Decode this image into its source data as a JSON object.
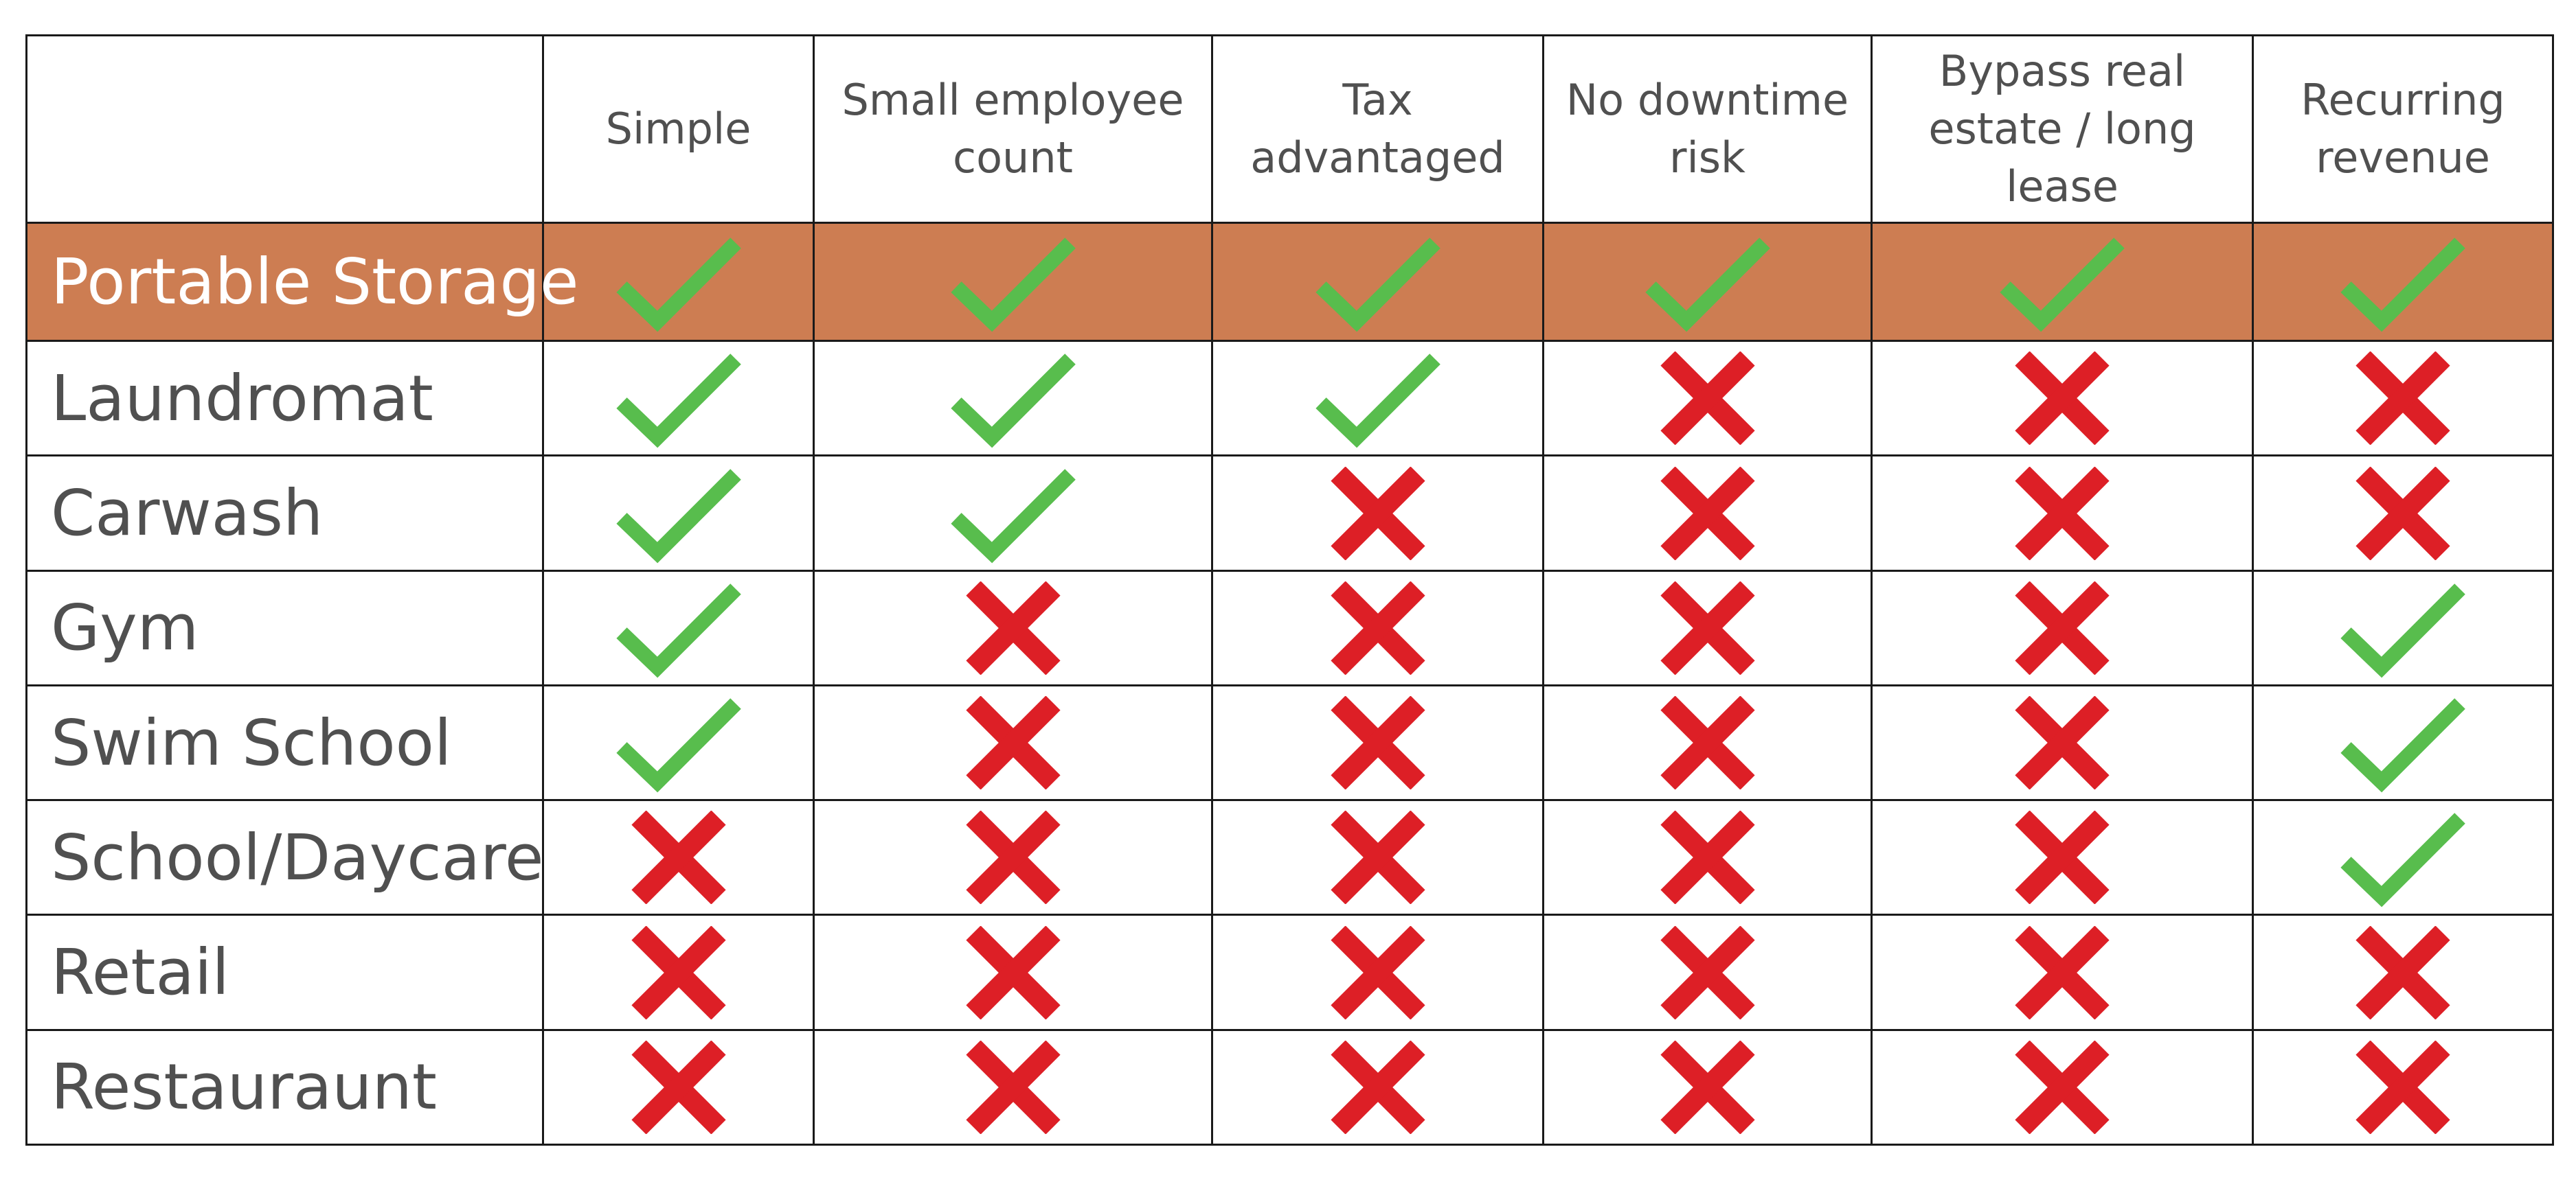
{
  "colors": {
    "highlight": "#cd7d52",
    "check": "#58bd4d",
    "cross": "#dd1f26",
    "text": "#505050",
    "highlight_text": "#ffffff",
    "border": "#1a1a1a"
  },
  "icons": {
    "yes": "check-icon",
    "no": "cross-icon"
  },
  "table": {
    "corner_label": "",
    "columns": [
      "Simple",
      "Small employee count",
      "Tax advantaged",
      "No downtime risk",
      "Bypass real estate / long lease",
      "Recurring revenue"
    ],
    "rows": [
      {
        "label": "Portable Storage",
        "highlighted": true,
        "values": [
          true,
          true,
          true,
          true,
          true,
          true
        ]
      },
      {
        "label": "Laundromat",
        "highlighted": false,
        "values": [
          true,
          true,
          true,
          false,
          false,
          false
        ]
      },
      {
        "label": "Carwash",
        "highlighted": false,
        "values": [
          true,
          true,
          false,
          false,
          false,
          false
        ]
      },
      {
        "label": "Gym",
        "highlighted": false,
        "values": [
          true,
          false,
          false,
          false,
          false,
          true
        ]
      },
      {
        "label": "Swim School",
        "highlighted": false,
        "values": [
          true,
          false,
          false,
          false,
          false,
          true
        ]
      },
      {
        "label": "School/Daycare",
        "highlighted": false,
        "values": [
          false,
          false,
          false,
          false,
          false,
          true
        ]
      },
      {
        "label": "Retail",
        "highlighted": false,
        "values": [
          false,
          false,
          false,
          false,
          false,
          false
        ]
      },
      {
        "label": "Restauraunt",
        "highlighted": false,
        "values": [
          false,
          false,
          false,
          false,
          false,
          false
        ]
      }
    ]
  }
}
